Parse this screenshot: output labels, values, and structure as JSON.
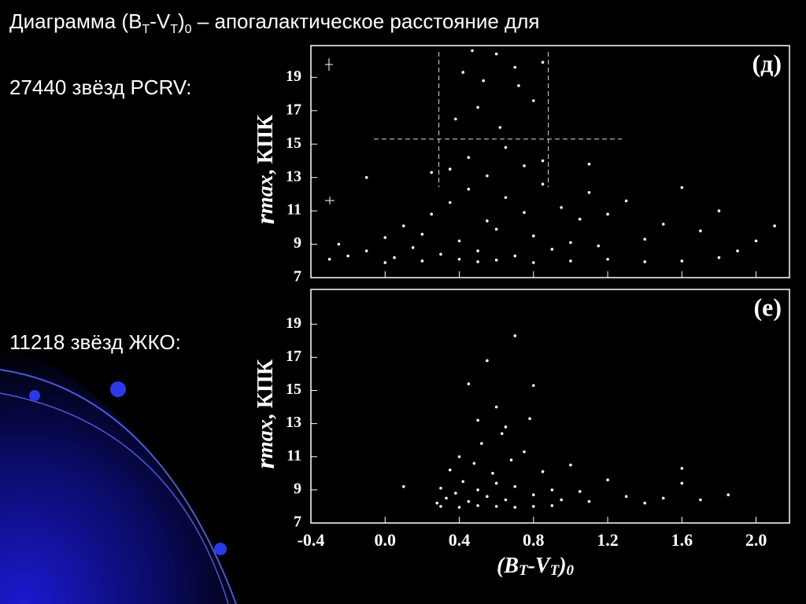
{
  "slide": {
    "title_parts": [
      "Диаграмма (B",
      "T",
      "-V",
      "T",
      ")",
      "0",
      " – апогалактическое расстояние для"
    ],
    "caption_top": "27440 звёзд PCRV:",
    "caption_bottom": "11218 звёзд ЖКО:"
  },
  "chart_data": [
    {
      "type": "scatter",
      "panel_label": "(д)",
      "y_label_parts": [
        "r",
        "max",
        ", КПК"
      ],
      "xlim": [
        -0.4,
        2.18
      ],
      "ylim": [
        7,
        20.9
      ],
      "xticks": [
        -0.4,
        0,
        0.4,
        0.8,
        1.2,
        1.6,
        2
      ],
      "yticks": [
        7,
        9,
        11,
        13,
        15,
        17,
        19
      ],
      "vlines": [
        0.29,
        0.88
      ],
      "hline": 15.3,
      "color": "#ffffff",
      "x": [
        -0.3,
        -0.25,
        -0.2,
        -0.1,
        0,
        0.05,
        0.1,
        0.15,
        0.2,
        0.25,
        0.3,
        0.35,
        0.4,
        0.45,
        0.5,
        0.55,
        0.6,
        0.65,
        0.7,
        0.75,
        0.8,
        0.85,
        0.9,
        0.95,
        1.0,
        1.05,
        1.1,
        1.15,
        1.2,
        1.3,
        1.4,
        1.5,
        1.6,
        1.7,
        1.8,
        1.9,
        2.0,
        2.1,
        0.0,
        0.2,
        0.4,
        0.5,
        0.6,
        0.8,
        1.0,
        1.2,
        1.4,
        1.6,
        1.8,
        0.35,
        0.45,
        0.55,
        0.65,
        0.75,
        0.85,
        0.38,
        0.5,
        0.62,
        0.72,
        0.8,
        0.42,
        0.6,
        0.85,
        0.47,
        0.53,
        0.7,
        -0.1,
        0.25,
        1.1
      ],
      "values": [
        8.1,
        9.0,
        8.3,
        8.6,
        9.4,
        8.2,
        10.1,
        8.8,
        9.6,
        10.8,
        8.4,
        11.5,
        9.2,
        12.3,
        8.6,
        10.4,
        9.9,
        11.8,
        8.3,
        10.9,
        9.5,
        12.6,
        8.7,
        11.2,
        9.1,
        10.5,
        12.1,
        8.9,
        10.8,
        11.6,
        9.3,
        10.2,
        12.4,
        9.8,
        11.0,
        8.6,
        9.2,
        10.1,
        7.9,
        8.0,
        8.1,
        7.95,
        8.05,
        7.9,
        8.0,
        8.1,
        7.95,
        8.0,
        8.2,
        13.5,
        14.2,
        13.1,
        14.8,
        13.7,
        14.0,
        16.5,
        17.2,
        16.0,
        18.5,
        17.6,
        19.3,
        20.4,
        19.9,
        20.6,
        18.8,
        19.6,
        13.0,
        13.3,
        13.8
      ]
    },
    {
      "type": "scatter",
      "panel_label": "(е)",
      "y_label_parts": [
        "r",
        "max",
        ", КПК"
      ],
      "x_label_parts": [
        "(B",
        "T",
        "-V",
        "T",
        ")",
        "0"
      ],
      "xlim": [
        -0.4,
        2.18
      ],
      "ylim": [
        7,
        21.1
      ],
      "xticks": [
        -0.4,
        {
          "value": 0,
          "label": "0.0"
        },
        0.4,
        0.8,
        1.2,
        1.6,
        {
          "value": 2,
          "label": "2.0"
        }
      ],
      "yticks": [
        7,
        9,
        11,
        13,
        15,
        17,
        19
      ],
      "color": "#ffffff",
      "x": [
        0.28,
        0.3,
        0.33,
        0.35,
        0.38,
        0.4,
        0.42,
        0.45,
        0.48,
        0.5,
        0.52,
        0.55,
        0.58,
        0.6,
        0.63,
        0.65,
        0.68,
        0.7,
        0.75,
        0.8,
        0.85,
        0.9,
        0.95,
        1.0,
        1.05,
        1.1,
        1.2,
        1.3,
        1.4,
        1.5,
        1.6,
        1.7,
        1.85,
        0.3,
        0.4,
        0.5,
        0.6,
        0.7,
        0.8,
        0.9,
        0.5,
        0.65,
        0.78,
        0.45,
        0.6,
        0.8,
        0.55,
        0.7,
        0.1,
        1.6
      ],
      "values": [
        8.2,
        9.1,
        8.5,
        10.2,
        8.8,
        11.0,
        9.5,
        8.3,
        10.6,
        9.0,
        11.8,
        8.6,
        10.0,
        9.4,
        12.4,
        8.4,
        10.8,
        9.2,
        11.3,
        8.7,
        10.1,
        9.0,
        8.4,
        10.5,
        8.9,
        8.3,
        9.6,
        8.6,
        8.2,
        8.5,
        10.3,
        8.4,
        8.7,
        8.0,
        7.95,
        8.05,
        8.0,
        7.95,
        8.0,
        8.05,
        13.2,
        12.8,
        13.3,
        15.4,
        14.0,
        15.3,
        16.8,
        18.3,
        9.2,
        9.4
      ]
    }
  ]
}
